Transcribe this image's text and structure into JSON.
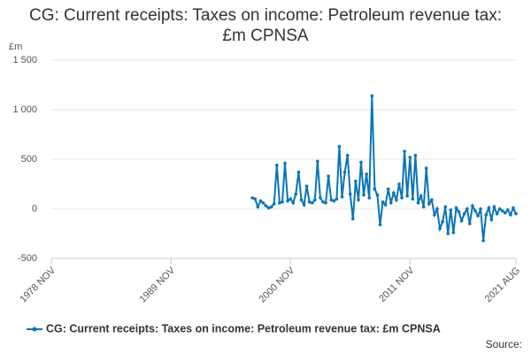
{
  "chart_data": {
    "type": "line",
    "title": "CG: Current receipts: Taxes on income: Petroleum revenue tax: £m CPNSA",
    "y_label": "£m",
    "source": "Source:",
    "x": [
      "1997 MAY",
      "1997 AUG",
      "1997 NOV",
      "1998 FEB",
      "1998 MAY",
      "1998 AUG",
      "1998 NOV",
      "1999 FEB",
      "1999 MAY",
      "1999 AUG",
      "1999 NOV",
      "2000 FEB",
      "2000 MAY",
      "2000 AUG",
      "2000 NOV",
      "2001 FEB",
      "2001 MAY",
      "2001 AUG",
      "2001 NOV",
      "2002 FEB",
      "2002 MAY",
      "2002 AUG",
      "2002 NOV",
      "2003 FEB",
      "2003 MAY",
      "2003 AUG",
      "2003 NOV",
      "2004 FEB",
      "2004 MAY",
      "2004 AUG",
      "2004 NOV",
      "2005 FEB",
      "2005 MAY",
      "2005 AUG",
      "2005 NOV",
      "2006 FEB",
      "2006 MAY",
      "2006 AUG",
      "2006 NOV",
      "2007 FEB",
      "2007 MAY",
      "2007 AUG",
      "2007 NOV",
      "2008 FEB",
      "2008 MAY",
      "2008 AUG",
      "2008 NOV",
      "2009 FEB",
      "2009 MAY",
      "2009 AUG",
      "2009 NOV",
      "2010 FEB",
      "2010 MAY",
      "2010 AUG",
      "2010 NOV",
      "2011 FEB",
      "2011 MAY",
      "2011 AUG",
      "2011 NOV",
      "2012 FEB",
      "2012 MAY",
      "2012 AUG",
      "2012 NOV",
      "2013 FEB",
      "2013 MAY",
      "2013 AUG",
      "2013 NOV",
      "2014 FEB",
      "2014 MAY",
      "2014 AUG",
      "2014 NOV",
      "2015 FEB",
      "2015 MAY",
      "2015 AUG",
      "2015 NOV",
      "2016 FEB",
      "2016 MAY",
      "2016 AUG",
      "2016 NOV",
      "2017 FEB",
      "2017 MAY",
      "2017 AUG",
      "2017 NOV",
      "2018 FEB",
      "2018 MAY",
      "2018 AUG",
      "2018 NOV",
      "2019 FEB",
      "2019 MAY",
      "2019 AUG",
      "2019 NOV",
      "2020 FEB",
      "2020 MAY",
      "2020 AUG",
      "2020 NOV",
      "2021 FEB",
      "2021 MAY",
      "2021 AUG"
    ],
    "series": [
      {
        "name": "CG: Current receipts: Taxes on income: Petroleum revenue tax: £m CPNSA",
        "color": "#0a74b8",
        "values": [
          110,
          100,
          20,
          80,
          60,
          30,
          10,
          20,
          50,
          440,
          60,
          70,
          460,
          80,
          100,
          60,
          150,
          370,
          90,
          40,
          230,
          70,
          60,
          90,
          480,
          110,
          70,
          60,
          330,
          90,
          80,
          100,
          630,
          120,
          370,
          540,
          150,
          -100,
          280,
          90,
          470,
          140,
          350,
          110,
          1140,
          200,
          140,
          -160,
          70,
          40,
          200,
          60,
          160,
          90,
          250,
          110,
          580,
          130,
          520,
          100,
          540,
          60,
          130,
          20,
          410,
          50,
          90,
          -60,
          0,
          -200,
          -130,
          20,
          -250,
          -10,
          -240,
          10,
          -30,
          -120,
          -50,
          0,
          -150,
          30,
          -20,
          -70,
          0,
          -320,
          -60,
          10,
          -110,
          20,
          -50,
          0,
          -20,
          -40,
          -10,
          -60,
          10,
          -50
        ]
      }
    ],
    "xlim": [
      "1978 NOV",
      "2021 AUG"
    ],
    "xticks": [
      "1978 NOV",
      "1989 NOV",
      "2000 NOV",
      "2011 NOV",
      "2021 AUG"
    ],
    "ylim": [
      -500,
      1500
    ],
    "yticks": [
      -500,
      0,
      500,
      {
        "value": 1000,
        "label": "1 000"
      },
      {
        "value": 1500,
        "label": "1 500"
      }
    ],
    "grid": true
  }
}
